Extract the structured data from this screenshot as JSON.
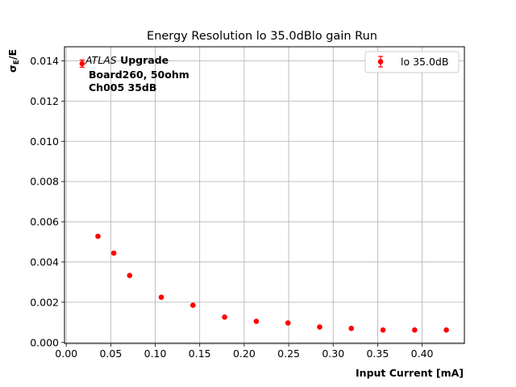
{
  "chart_data": {
    "type": "scatter",
    "title": "Energy Resolution lo 35.0dBlo gain Run",
    "xlabel": "Input Current [mA]",
    "ylabel_main": "σ",
    "ylabel_sub": "E",
    "ylabel_tail": "/E",
    "xlim": [
      -0.002,
      0.4475
    ],
    "ylim": [
      -5e-05,
      0.0147
    ],
    "xticks": [
      0.0,
      0.05,
      0.1,
      0.15,
      0.2,
      0.25,
      0.3,
      0.35,
      0.4
    ],
    "xtick_labels": [
      "0.00",
      "0.05",
      "0.10",
      "0.15",
      "0.20",
      "0.25",
      "0.30",
      "0.35",
      "0.40"
    ],
    "yticks": [
      0.0,
      0.002,
      0.004,
      0.006,
      0.008,
      0.01,
      0.012,
      0.014
    ],
    "ytick_labels": [
      "0.000",
      "0.002",
      "0.004",
      "0.006",
      "0.008",
      "0.010",
      "0.012",
      "0.014"
    ],
    "grid": true,
    "legend_position": "top-right",
    "series": [
      {
        "name": "lo 35.0dB",
        "color": "#ff0000",
        "points": [
          {
            "x": 0.0178,
            "y": 0.01386,
            "err": 0.00018
          },
          {
            "x": 0.0356,
            "y": 0.00528,
            "err": 4e-05
          },
          {
            "x": 0.0534,
            "y": 0.00444,
            "err": 3e-05
          },
          {
            "x": 0.0712,
            "y": 0.00333,
            "err": 2e-05
          },
          {
            "x": 0.1068,
            "y": 0.00225,
            "err": 2e-05
          },
          {
            "x": 0.1424,
            "y": 0.00185,
            "err": 1e-05
          },
          {
            "x": 0.178,
            "y": 0.00126,
            "err": 1e-05
          },
          {
            "x": 0.2136,
            "y": 0.00105,
            "err": 1e-05
          },
          {
            "x": 0.2492,
            "y": 0.00097,
            "err": 1e-05
          },
          {
            "x": 0.2848,
            "y": 0.00077,
            "err": 1e-05
          },
          {
            "x": 0.3204,
            "y": 0.0007,
            "err": 1e-05
          },
          {
            "x": 0.356,
            "y": 0.00062,
            "err": 1e-05
          },
          {
            "x": 0.3916,
            "y": 0.00062,
            "err": 1e-05
          },
          {
            "x": 0.4272,
            "y": 0.00062,
            "err": 1e-05
          }
        ]
      }
    ],
    "annotation": {
      "italic": "ATLAS",
      "bold": " Upgrade",
      "line2": "Board260, 50ohm",
      "line3": "Ch005 35dB"
    }
  }
}
